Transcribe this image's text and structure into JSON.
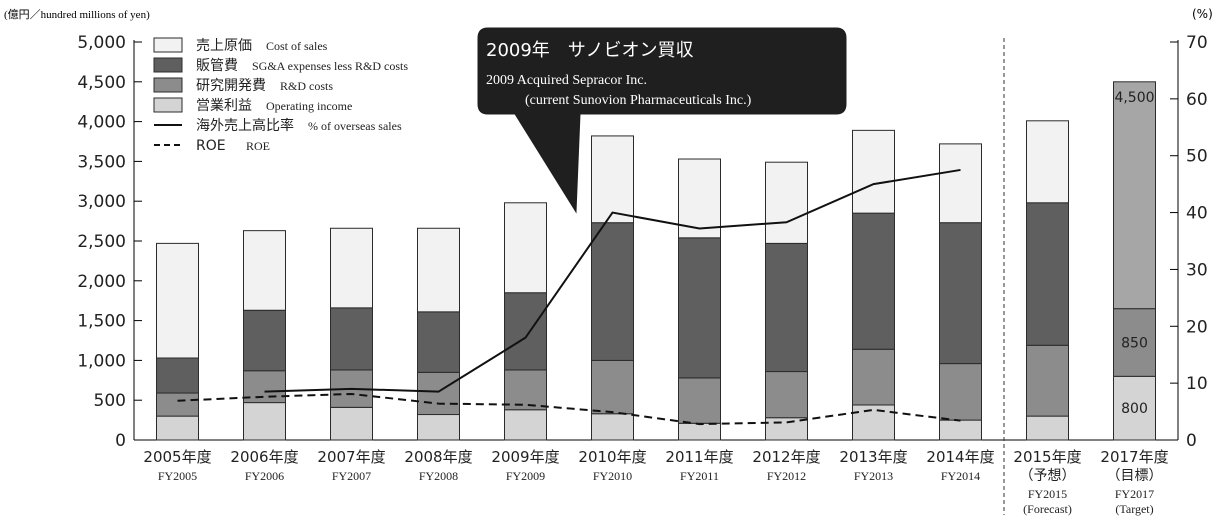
{
  "chart_data": {
    "type": "bar",
    "ylabel_left": "(億円／hundred millions of yen)",
    "ylabel_right": "(%)",
    "ylim_left": [
      0,
      5000
    ],
    "ylim_right": [
      0,
      70
    ],
    "yticks_left": [
      "0",
      "500",
      "1,000",
      "1,500",
      "2,000",
      "2,500",
      "3,000",
      "3,500",
      "4,000",
      "4,500",
      "5,000"
    ],
    "yticks_right": [
      "0",
      "10",
      "20",
      "30",
      "40",
      "50",
      "60",
      "70"
    ],
    "categories": [
      {
        "ja": "2005年度",
        "en": "FY2005",
        "sub": ""
      },
      {
        "ja": "2006年度",
        "en": "FY2006",
        "sub": ""
      },
      {
        "ja": "2007年度",
        "en": "FY2007",
        "sub": ""
      },
      {
        "ja": "2008年度",
        "en": "FY2008",
        "sub": ""
      },
      {
        "ja": "2009年度",
        "en": "FY2009",
        "sub": ""
      },
      {
        "ja": "2010年度",
        "en": "FY2010",
        "sub": ""
      },
      {
        "ja": "2011年度",
        "en": "FY2011",
        "sub": ""
      },
      {
        "ja": "2012年度",
        "en": "FY2012",
        "sub": ""
      },
      {
        "ja": "2013年度",
        "en": "FY2013",
        "sub": ""
      },
      {
        "ja": "2014年度",
        "en": "FY2014",
        "sub": ""
      },
      {
        "ja": "2015年度",
        "ja2": "（予想）",
        "en": "FY2015",
        "sub": "(Forecast)"
      },
      {
        "ja": "2017年度",
        "ja2": "（目標）",
        "en": "FY2017",
        "sub": "(Target)"
      }
    ],
    "bar_series": [
      {
        "name_ja": "営業利益",
        "name_en": "Operating income",
        "color": "#d4d4d4",
        "values": [
          300,
          470,
          410,
          320,
          380,
          330,
          210,
          280,
          440,
          250,
          300,
          800
        ]
      },
      {
        "name_ja": "研究開発費",
        "name_en": "R&D costs",
        "color": "#8c8c8c",
        "values": [
          290,
          400,
          470,
          530,
          500,
          670,
          570,
          580,
          700,
          710,
          890,
          850
        ]
      },
      {
        "name_ja": "販管費",
        "name_en": "SG&A expenses less R&D costs",
        "color": "#5f5f5f",
        "values": [
          440,
          760,
          780,
          760,
          970,
          1730,
          1760,
          1610,
          1710,
          1770,
          1790,
          0
        ]
      },
      {
        "name_ja": "売上原価",
        "name_en": "Cost of sales",
        "color": "#f2f2f2",
        "values": [
          1440,
          1000,
          1000,
          1050,
          1130,
          1090,
          990,
          1020,
          1040,
          990,
          1030,
          0
        ]
      }
    ],
    "target_bar": {
      "index": 11,
      "upper_value": 2850,
      "upper_color": "#a6a6a6",
      "labels": [
        "800",
        "850",
        "4,500"
      ]
    },
    "line_series": [
      {
        "name_ja": "海外売上高比率",
        "name_en": "% of overseas sales",
        "style": "solid",
        "values": [
          null,
          8.5,
          9.0,
          8.5,
          18,
          40,
          37.2,
          38.3,
          45,
          47.5,
          null,
          null
        ]
      },
      {
        "name_ja": "ROE",
        "name_en": "ROE",
        "style": "dashed",
        "values": [
          6.9,
          7.6,
          8.1,
          6.4,
          6.2,
          4.9,
          2.8,
          3.1,
          5.3,
          3.4,
          null,
          null
        ]
      }
    ],
    "callout": {
      "title": "2009年　サノビオン買収",
      "line1": "2009 Acquired Sepracor Inc.",
      "line2": "(current Sunovion Pharmaceuticals Inc.)"
    }
  }
}
